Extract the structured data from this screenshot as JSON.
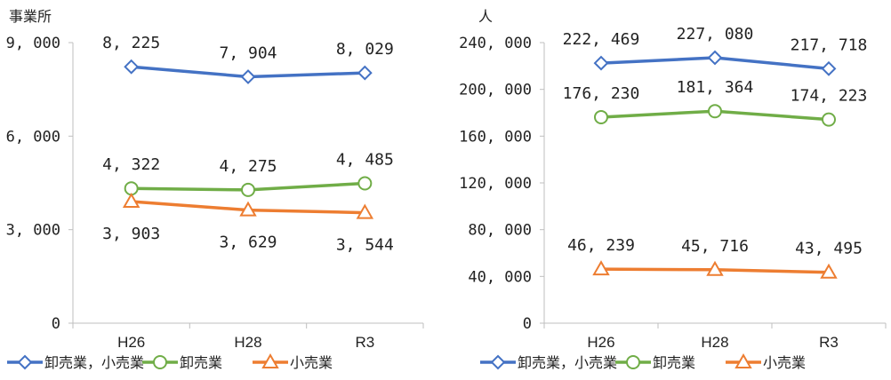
{
  "chart_data": [
    {
      "type": "line",
      "unit_label": "事業所",
      "categories": [
        "H26",
        "H28",
        "R3"
      ],
      "ylim": [
        0,
        9000
      ],
      "yticks": [
        0,
        3000,
        6000,
        9000
      ],
      "ytick_labels": [
        "0",
        "3, 000",
        "6, 000",
        "9, 000"
      ],
      "series": [
        {
          "name": "卸売業，小売業",
          "values": [
            8225,
            7904,
            8029
          ],
          "labels": [
            "8, 225",
            "7, 904",
            "8, 029"
          ],
          "label_pos": "above",
          "color": "#4472C4",
          "marker": "diamond"
        },
        {
          "name": "卸売業",
          "values": [
            4322,
            4275,
            4485
          ],
          "labels": [
            "4, 322",
            "4, 275",
            "4, 485"
          ],
          "label_pos": "above",
          "color": "#70AD47",
          "marker": "circle"
        },
        {
          "name": "小売業",
          "values": [
            3903,
            3629,
            3544
          ],
          "labels": [
            "3, 903",
            "3, 629",
            "3, 544"
          ],
          "label_pos": "below",
          "color": "#ED7D31",
          "marker": "triangle"
        }
      ],
      "legend": "bottom"
    },
    {
      "type": "line",
      "unit_label": "人",
      "categories": [
        "H26",
        "H28",
        "R3"
      ],
      "ylim": [
        0,
        240000
      ],
      "yticks": [
        0,
        40000,
        80000,
        120000,
        160000,
        200000,
        240000
      ],
      "ytick_labels": [
        "0",
        "40, 000",
        "80, 000",
        "120, 000",
        "160, 000",
        "200, 000",
        "240, 000"
      ],
      "series": [
        {
          "name": "卸売業，小売業",
          "values": [
            222469,
            227080,
            217718
          ],
          "labels": [
            "222, 469",
            "227, 080",
            "217, 718"
          ],
          "label_pos": "above",
          "color": "#4472C4",
          "marker": "diamond"
        },
        {
          "name": "卸売業",
          "values": [
            176230,
            181364,
            174223
          ],
          "labels": [
            "176, 230",
            "181, 364",
            "174, 223"
          ],
          "label_pos": "above",
          "color": "#70AD47",
          "marker": "circle"
        },
        {
          "name": "小売業",
          "values": [
            46239,
            45716,
            43495
          ],
          "labels": [
            "46, 239",
            "45, 716",
            "43, 495"
          ],
          "label_pos": "above",
          "color": "#ED7D31",
          "marker": "triangle"
        }
      ],
      "legend": "bottom"
    }
  ]
}
